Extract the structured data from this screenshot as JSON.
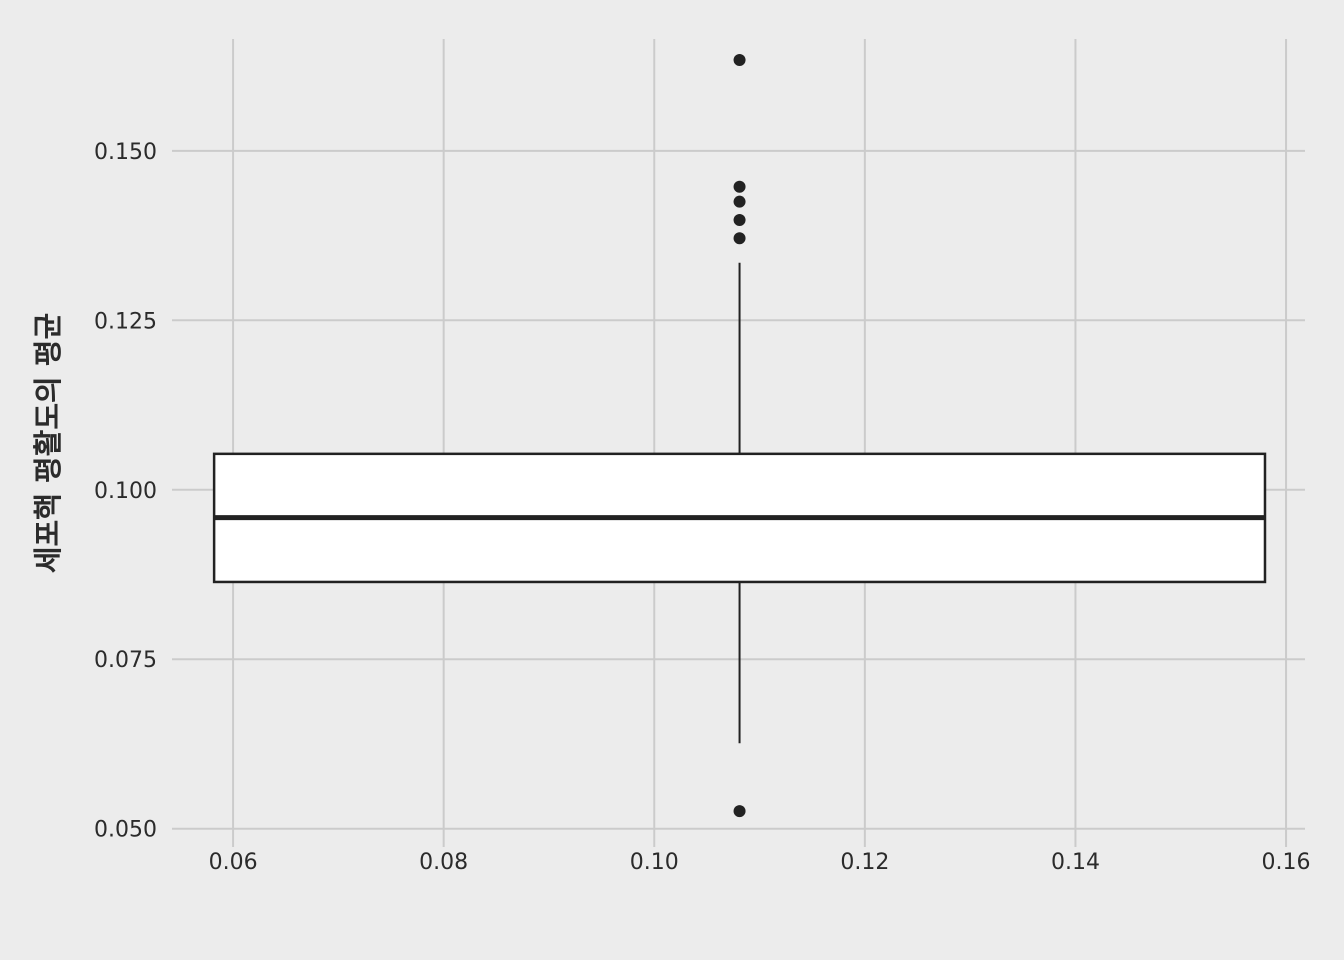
{
  "chart_data": {
    "type": "box",
    "title": "",
    "xlabel": "",
    "ylabel": "세포핵 평활도의 평균",
    "xlim": [
      0.0542,
      0.1618
    ],
    "ylim": [
      0.0473,
      0.1665
    ],
    "x_ticks": [
      0.06,
      0.08,
      0.1,
      0.12,
      0.14,
      0.16
    ],
    "x_tick_labels": [
      "0.06",
      "0.08",
      "0.10",
      "0.12",
      "0.14",
      "0.16"
    ],
    "y_ticks": [
      0.05,
      0.075,
      0.1,
      0.125,
      0.15
    ],
    "y_tick_labels": [
      "0.050",
      "0.075",
      "0.100",
      "0.125",
      "0.150"
    ],
    "grid": true,
    "box": {
      "x_min": 0.0582,
      "x_max": 0.158,
      "x_center": 0.1081,
      "q1": 0.0864,
      "median": 0.0959,
      "q3": 0.1053,
      "whisker_low": 0.0626,
      "whisker_high": 0.1335,
      "outliers": [
        0.0526,
        0.1371,
        0.1398,
        0.1425,
        0.1447,
        0.1634
      ]
    },
    "colors": {
      "background": "#ececec",
      "grid": "#cbcbcb",
      "box_fill": "#ffffff",
      "stroke": "#222222"
    }
  }
}
